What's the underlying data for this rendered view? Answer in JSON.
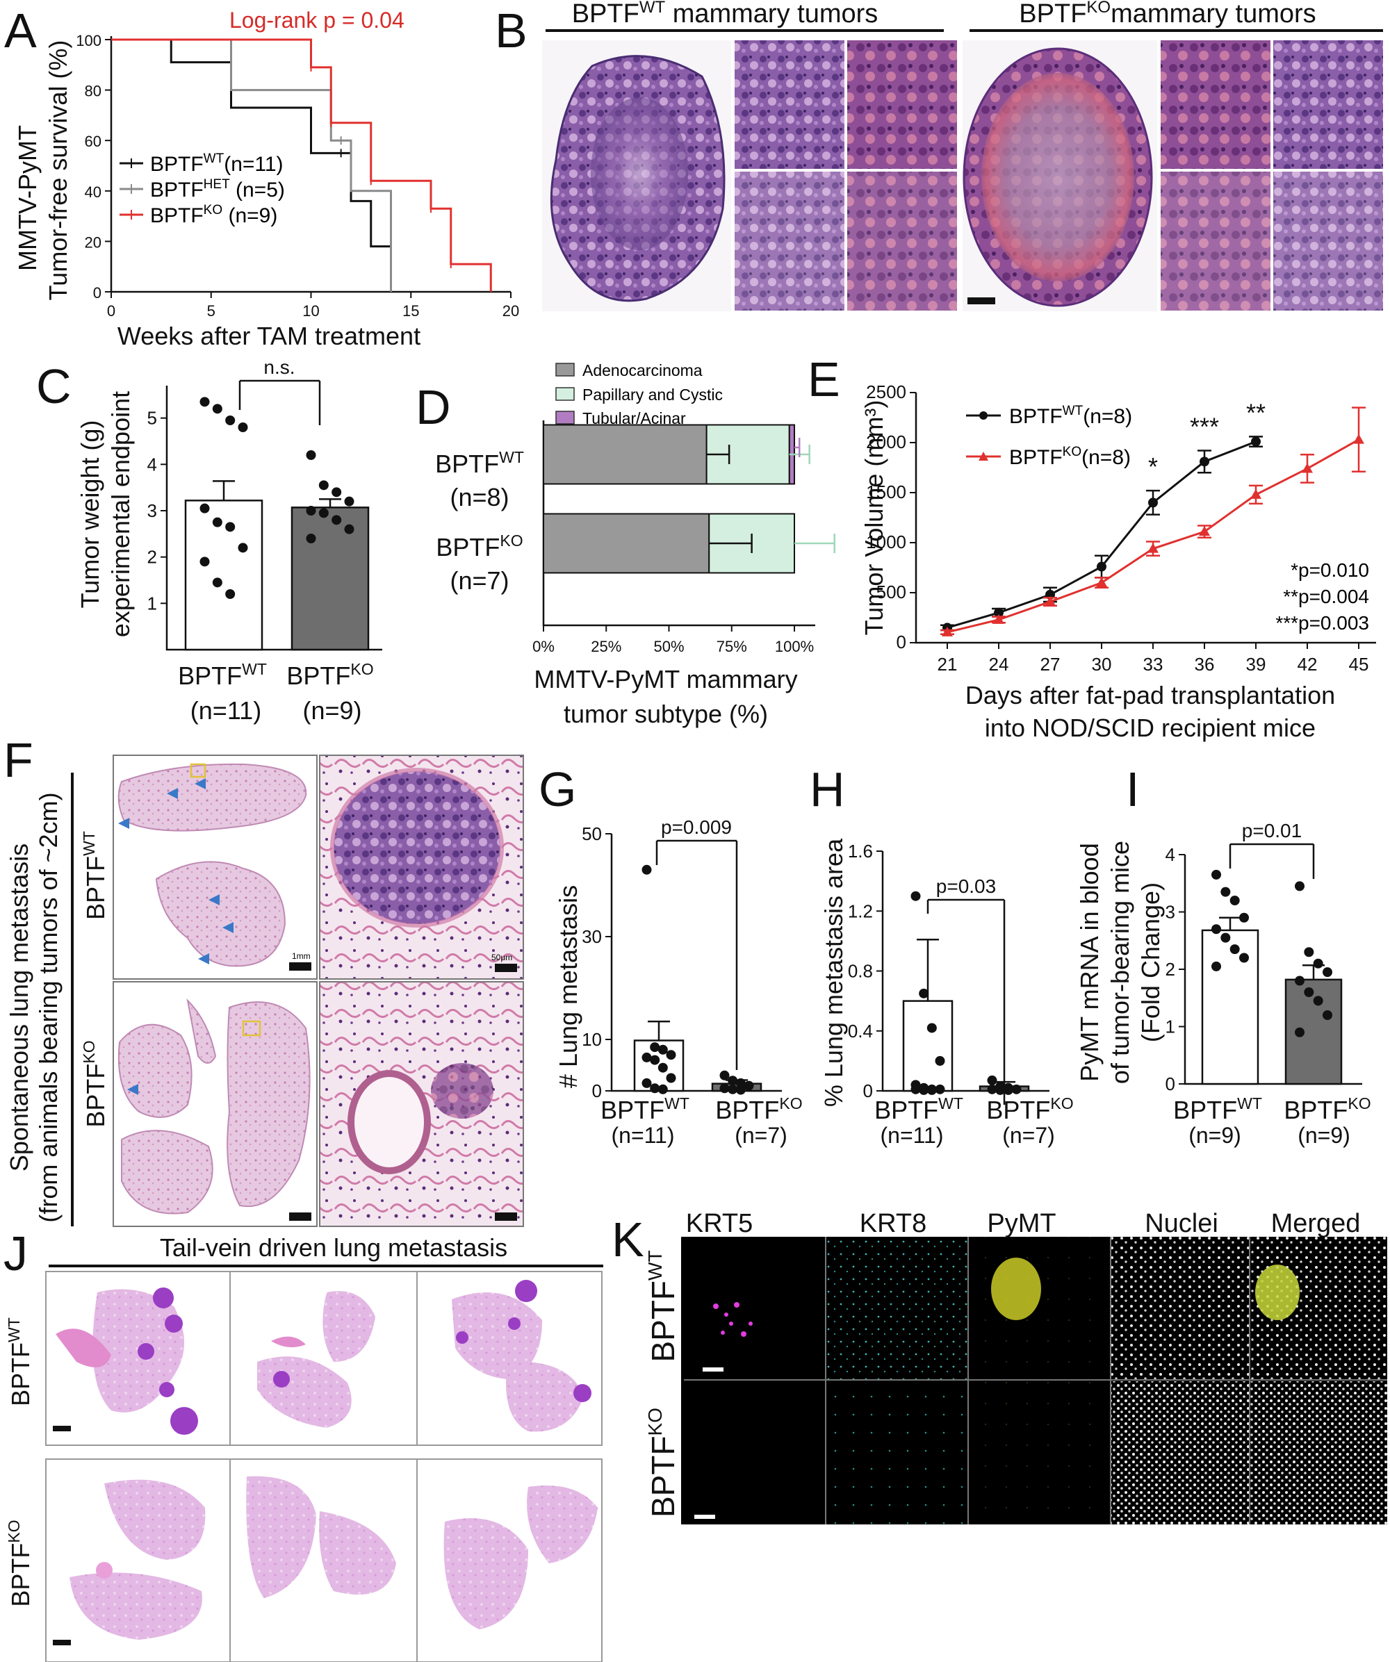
{
  "panels": {
    "A": {
      "label": "A",
      "annotation": "Log-rank p = 0.04",
      "ylabel_line1": "MMTV-PyMT",
      "ylabel_line2": "Tumor-free survival (%)",
      "xlabel": "Weeks after TAM treatment",
      "legend": [
        {
          "base": "BPTF",
          "sup": "WT",
          "tail": "(n=11)",
          "color": "#111111"
        },
        {
          "base": "BPTF",
          "sup": "HET",
          "tail": " (n=5)",
          "color": "#8a8a8a"
        },
        {
          "base": "BPTF",
          "sup": "KO",
          "tail": " (n=9)",
          "color": "#e0312f"
        }
      ]
    },
    "B": {
      "label": "B",
      "headers": [
        {
          "base": "BPTF",
          "sup": "WT",
          "tail": "  mammary tumors"
        },
        {
          "base": "BPTF",
          "sup": "KO",
          "tail": "mammary tumors"
        }
      ]
    },
    "C": {
      "label": "C",
      "ylabel_line1": "Tumor weight (g)",
      "ylabel_line2": "experimental endpoint",
      "sig": "n.s.",
      "groups": [
        {
          "base": "BPTF",
          "sup": "WT",
          "n": "(n=11)"
        },
        {
          "base": "BPTF",
          "sup": "KO",
          "n": "(n=9)"
        }
      ]
    },
    "D": {
      "label": "D",
      "legend": [
        "Adenocarcinoma",
        "Papillary and Cystic",
        "Tubular/Acinar"
      ],
      "xlabel_line1": "MMTV-PyMT mammary",
      "xlabel_line2": "tumor subtype (%)",
      "groups": [
        {
          "base": "BPTF",
          "sup": "WT",
          "n": "(n=8)"
        },
        {
          "base": "BPTF",
          "sup": "KO",
          "n": "(n=7)"
        }
      ]
    },
    "E": {
      "label": "E",
      "ylabel": "Tumor Volume (mm³)",
      "xlabel_line1": "Days after fat-pad transplantation",
      "xlabel_line2": "into NOD/SCID recipient mice",
      "legend": [
        {
          "base": "BPTF",
          "sup": "WT",
          "tail": "(n=8)",
          "color": "#111111"
        },
        {
          "base": "BPTF",
          "sup": "KO",
          "tail": "(n=8)",
          "color": "#e0312f"
        }
      ],
      "stars": [
        "*",
        "***",
        "**"
      ],
      "pvalues": [
        "*p=0.010",
        "**p=0.004",
        "***p=0.003"
      ]
    },
    "F": {
      "label": "F",
      "side_line1": "Spontaneous lung metastasis",
      "side_line2": "(from animals bearing tumors of ~2cm)",
      "rows": [
        {
          "base": "BPTF",
          "sup": "WT"
        },
        {
          "base": "BPTF",
          "sup": "KO"
        }
      ],
      "scale_1": "1mm",
      "scale_2": "50μm"
    },
    "G": {
      "label": "G",
      "ylabel": "# Lung metastasis",
      "sig": "p=0.009",
      "groups": [
        {
          "base": "BPTF",
          "sup": "WT",
          "n": "(n=11)"
        },
        {
          "base": "BPTF",
          "sup": "KO",
          "n": "(n=7)"
        }
      ]
    },
    "H": {
      "label": "H",
      "ylabel": "% Lung metastasis area",
      "sig": "p=0.03",
      "groups": [
        {
          "base": "BPTF",
          "sup": "WT",
          "n": "(n=11)"
        },
        {
          "base": "BPTF",
          "sup": "KO",
          "n": "(n=7)"
        }
      ]
    },
    "I": {
      "label": "I",
      "ylabel_line1": "PyMT mRNA in blood",
      "ylabel_line2": "of tumor-bearing mice",
      "ylabel_line3": "(Fold Change)",
      "sig": "p=0.01",
      "groups": [
        {
          "base": "BPTF",
          "sup": "WT",
          "n": "(n=9)"
        },
        {
          "base": "BPTF",
          "sup": "KO",
          "n": "(n=9)"
        }
      ]
    },
    "J": {
      "label": "J",
      "title": "Tail-vein driven lung metastasis",
      "rows": [
        {
          "base": "BPTF",
          "sup": "WT"
        },
        {
          "base": "BPTF",
          "sup": "KO"
        }
      ]
    },
    "K": {
      "label": "K",
      "channels": [
        "KRT5",
        "KRT8",
        "PyMT",
        "Nuclei",
        "Merged"
      ],
      "rows": [
        {
          "base": "BPTF",
          "sup": "WT"
        },
        {
          "base": "BPTF",
          "sup": "KO"
        }
      ]
    }
  },
  "chart_data": [
    {
      "panel": "A",
      "type": "line",
      "title": "",
      "xlabel": "Weeks after TAM treatment",
      "ylabel": "Tumor-free survival (%)",
      "xlim": [
        0,
        20
      ],
      "ylim": [
        0,
        100
      ],
      "xticks": [
        0,
        5,
        10,
        15,
        20
      ],
      "yticks": [
        0,
        20,
        40,
        60,
        80,
        100
      ],
      "series": [
        {
          "name": "BPTF WT (n=11)",
          "color": "#111111",
          "x": [
            0,
            3,
            6,
            10,
            12,
            13,
            14
          ],
          "y": [
            100,
            91,
            73,
            55,
            36,
            18,
            0
          ]
        },
        {
          "name": "BPTF HET (n=5)",
          "color": "#8a8a8a",
          "x": [
            0,
            6,
            11,
            12,
            14
          ],
          "y": [
            100,
            80,
            60,
            40,
            0
          ]
        },
        {
          "name": "BPTF KO (n=9)",
          "color": "#e0312f",
          "x": [
            0,
            10,
            11,
            13,
            16,
            17,
            19
          ],
          "y": [
            100,
            89,
            67,
            44,
            33,
            11,
            0
          ]
        }
      ],
      "censor_marks": [
        {
          "series": 0,
          "x": [
            11.5
          ]
        },
        {
          "series": 1,
          "x": [
            11.5
          ]
        },
        {
          "series": 2,
          "x": [
            10,
            11,
            13,
            16,
            17
          ]
        }
      ]
    },
    {
      "panel": "C",
      "type": "bar",
      "title": "",
      "ylabel": "Tumor weight (g)",
      "ylim": [
        0,
        5.7
      ],
      "yticks": [
        1,
        2,
        3,
        4,
        5
      ],
      "categories": [
        "BPTF WT (n=11)",
        "BPTF KO (n=9)"
      ],
      "values": [
        3.22,
        3.07
      ],
      "sem": [
        0.42,
        0.18
      ],
      "colors": [
        "#ffffff",
        "#6e6e6e"
      ],
      "points": [
        [
          5.35,
          5.2,
          4.95,
          4.8,
          3.05,
          2.75,
          2.65,
          2.2,
          1.9,
          1.45,
          1.2
        ],
        [
          4.2,
          3.55,
          3.4,
          3.2,
          3.0,
          2.95,
          2.8,
          2.6,
          2.4
        ]
      ]
    },
    {
      "panel": "D",
      "type": "bar",
      "orientation": "horizontal",
      "stacked": true,
      "title": "",
      "xlabel": "MMTV-PyMT mammary tumor subtype (%)",
      "xlim": [
        0,
        100
      ],
      "xticks": [
        0,
        25,
        50,
        75,
        100
      ],
      "categories": [
        "BPTF WT (n=8)",
        "BPTF KO (n=7)"
      ],
      "series": [
        {
          "name": "Adenocarcinoma",
          "color": "#999999",
          "values": [
            65,
            66
          ],
          "err": [
            9,
            17
          ]
        },
        {
          "name": "Papillary and Cystic",
          "color": "#d4efdf",
          "values": [
            33,
            34
          ],
          "err": [
            8,
            16
          ]
        },
        {
          "name": "Tubular/Acinar",
          "color": "#b27cc2",
          "values": [
            2,
            0
          ],
          "err": [
            2,
            0
          ]
        }
      ]
    },
    {
      "panel": "E",
      "type": "line",
      "title": "",
      "xlabel": "Days after fat-pad transplantation into NOD/SCID recipient mice",
      "ylabel": "Tumor Volume (mm³)",
      "ylim": [
        0,
        2500
      ],
      "yticks": [
        0,
        500,
        1000,
        1500,
        2000,
        2500
      ],
      "categories": [
        "21",
        "24",
        "27",
        "30",
        "33",
        "36",
        "39",
        "42",
        "45"
      ],
      "series": [
        {
          "name": "BPTF WT (n=8)",
          "color": "#111111",
          "values": [
            150,
            300,
            480,
            760,
            1400,
            1810,
            2010,
            null,
            null
          ],
          "sem": [
            25,
            40,
            70,
            110,
            120,
            110,
            50,
            null,
            null
          ]
        },
        {
          "name": "BPTF KO (n=8)",
          "color": "#e0312f",
          "values": [
            105,
            230,
            410,
            600,
            940,
            1110,
            1480,
            1740,
            2030
          ],
          "sem": [
            20,
            30,
            40,
            50,
            70,
            60,
            90,
            140,
            320
          ]
        }
      ],
      "significance": [
        {
          "x": "33",
          "label": "*"
        },
        {
          "x": "36",
          "label": "***"
        },
        {
          "x": "39",
          "label": "**"
        }
      ]
    },
    {
      "panel": "G",
      "type": "bar",
      "title": "",
      "ylabel": "# Lung metastasis",
      "ylim": [
        0,
        50
      ],
      "yticks": [
        0,
        10,
        30,
        50
      ],
      "categories": [
        "BPTF WT (n=11)",
        "BPTF KO (n=7)"
      ],
      "values": [
        9.8,
        1.4
      ],
      "sem": [
        3.7,
        0.7
      ],
      "colors": [
        "#ffffff",
        "#6e6e6e"
      ],
      "points": [
        [
          43,
          8.5,
          8,
          7,
          6.5,
          6,
          4.5,
          2.5,
          1.5,
          0.5,
          0.3
        ],
        [
          3,
          2,
          1.5,
          1,
          0.5,
          0.3,
          0.2
        ]
      ]
    },
    {
      "panel": "H",
      "type": "bar",
      "title": "",
      "ylabel": "% Lung metastasis area",
      "ylim": [
        0,
        1.6
      ],
      "yticks": [
        0,
        0.4,
        0.8,
        1.2,
        1.6
      ],
      "categories": [
        "BPTF WT (n=11)",
        "BPTF KO (n=7)"
      ],
      "values": [
        0.6,
        0.03
      ],
      "sem": [
        0.41,
        0.03
      ],
      "colors": [
        "#ffffff",
        "#6e6e6e"
      ],
      "points": [
        [
          1.3,
          0.65,
          0.42,
          0.2,
          0.04,
          0.02,
          0.01,
          0.01,
          0.01,
          0.005,
          0.005
        ],
        [
          0.07,
          0.03,
          0.02,
          0.01,
          0.01,
          0.005,
          0.005
        ]
      ]
    },
    {
      "panel": "I",
      "type": "bar",
      "title": "",
      "ylabel": "PyMT mRNA in blood of tumor-bearing mice (Fold Change)",
      "ylim": [
        0,
        4
      ],
      "yticks": [
        0,
        1,
        2,
        3,
        4
      ],
      "categories": [
        "BPTF WT (n=9)",
        "BPTF KO (n=9)"
      ],
      "values": [
        2.68,
        1.82
      ],
      "sem": [
        0.22,
        0.25
      ],
      "colors": [
        "#ffffff",
        "#6e6e6e"
      ],
      "points": [
        [
          3.65,
          3.35,
          3.2,
          2.9,
          2.7,
          2.55,
          2.35,
          2.2,
          2.05
        ],
        [
          3.45,
          2.3,
          2.1,
          1.95,
          1.8,
          1.6,
          1.45,
          1.2,
          0.9
        ]
      ]
    }
  ]
}
